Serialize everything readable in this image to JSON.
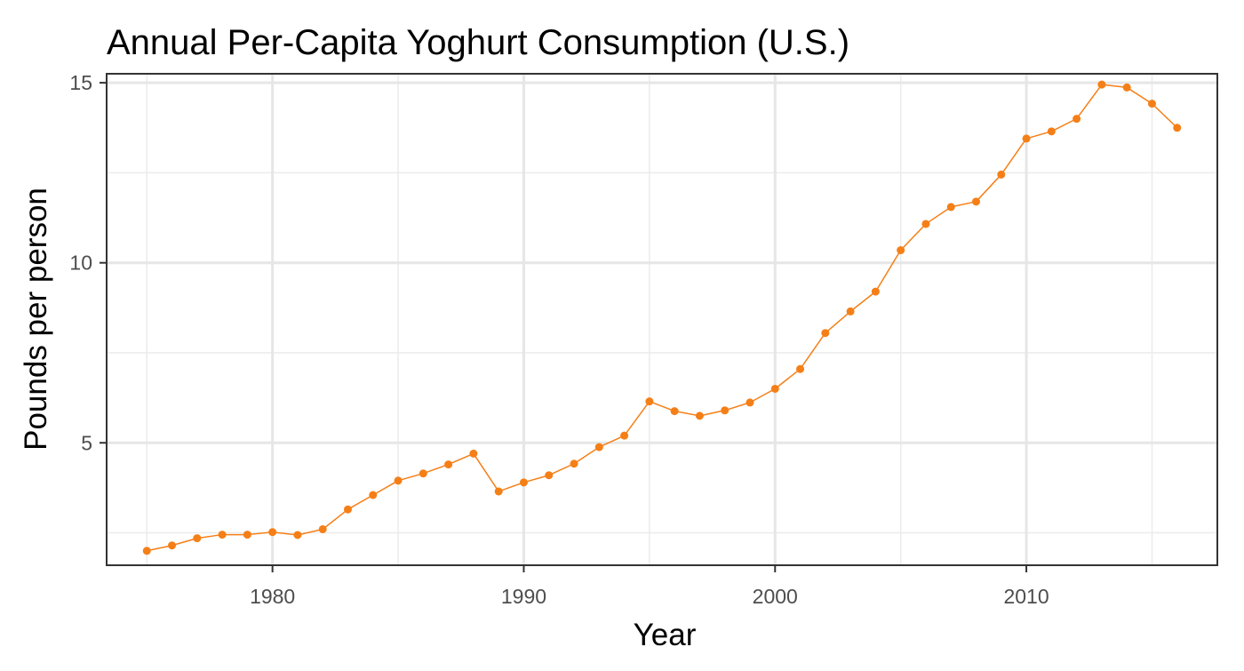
{
  "chart_data": {
    "type": "line",
    "title": "Annual Per-Capita Yoghurt Consumption (U.S.)",
    "xlabel": "Year",
    "ylabel": "Pounds per person",
    "xlim": [
      1973.4,
      2017.6
    ],
    "ylim": [
      1.6,
      15.25
    ],
    "x_ticks": [
      1980,
      1990,
      2000,
      2010
    ],
    "x_tick_labels": [
      "1980",
      "1990",
      "2000",
      "2010"
    ],
    "y_ticks": [
      5,
      10,
      15
    ],
    "y_tick_labels": [
      "5",
      "10",
      "15"
    ],
    "x_minor_grid": [
      1975,
      1985,
      1995,
      2005,
      2015
    ],
    "y_minor_grid": [
      2.5,
      7.5,
      12.5
    ],
    "grid": true,
    "series": [
      {
        "color": "#f57f17",
        "x": [
          1975,
          1976,
          1977,
          1978,
          1979,
          1980,
          1981,
          1982,
          1983,
          1984,
          1985,
          1986,
          1987,
          1988,
          1989,
          1990,
          1991,
          1992,
          1993,
          1994,
          1995,
          1996,
          1997,
          1998,
          1999,
          2000,
          2001,
          2002,
          2003,
          2004,
          2005,
          2006,
          2007,
          2008,
          2009,
          2010,
          2011,
          2012,
          2013,
          2014,
          2015,
          2016
        ],
        "y": [
          2.0,
          2.15,
          2.35,
          2.45,
          2.45,
          2.52,
          2.44,
          2.6,
          3.15,
          3.55,
          3.95,
          4.15,
          4.4,
          4.7,
          3.65,
          3.9,
          4.1,
          4.42,
          4.88,
          5.2,
          6.15,
          5.88,
          5.75,
          5.9,
          6.12,
          6.5,
          7.05,
          8.05,
          8.65,
          9.2,
          10.35,
          11.08,
          11.55,
          11.7,
          12.45,
          13.45,
          13.65,
          14.0,
          14.95,
          14.87,
          14.42,
          13.75
        ]
      }
    ]
  }
}
